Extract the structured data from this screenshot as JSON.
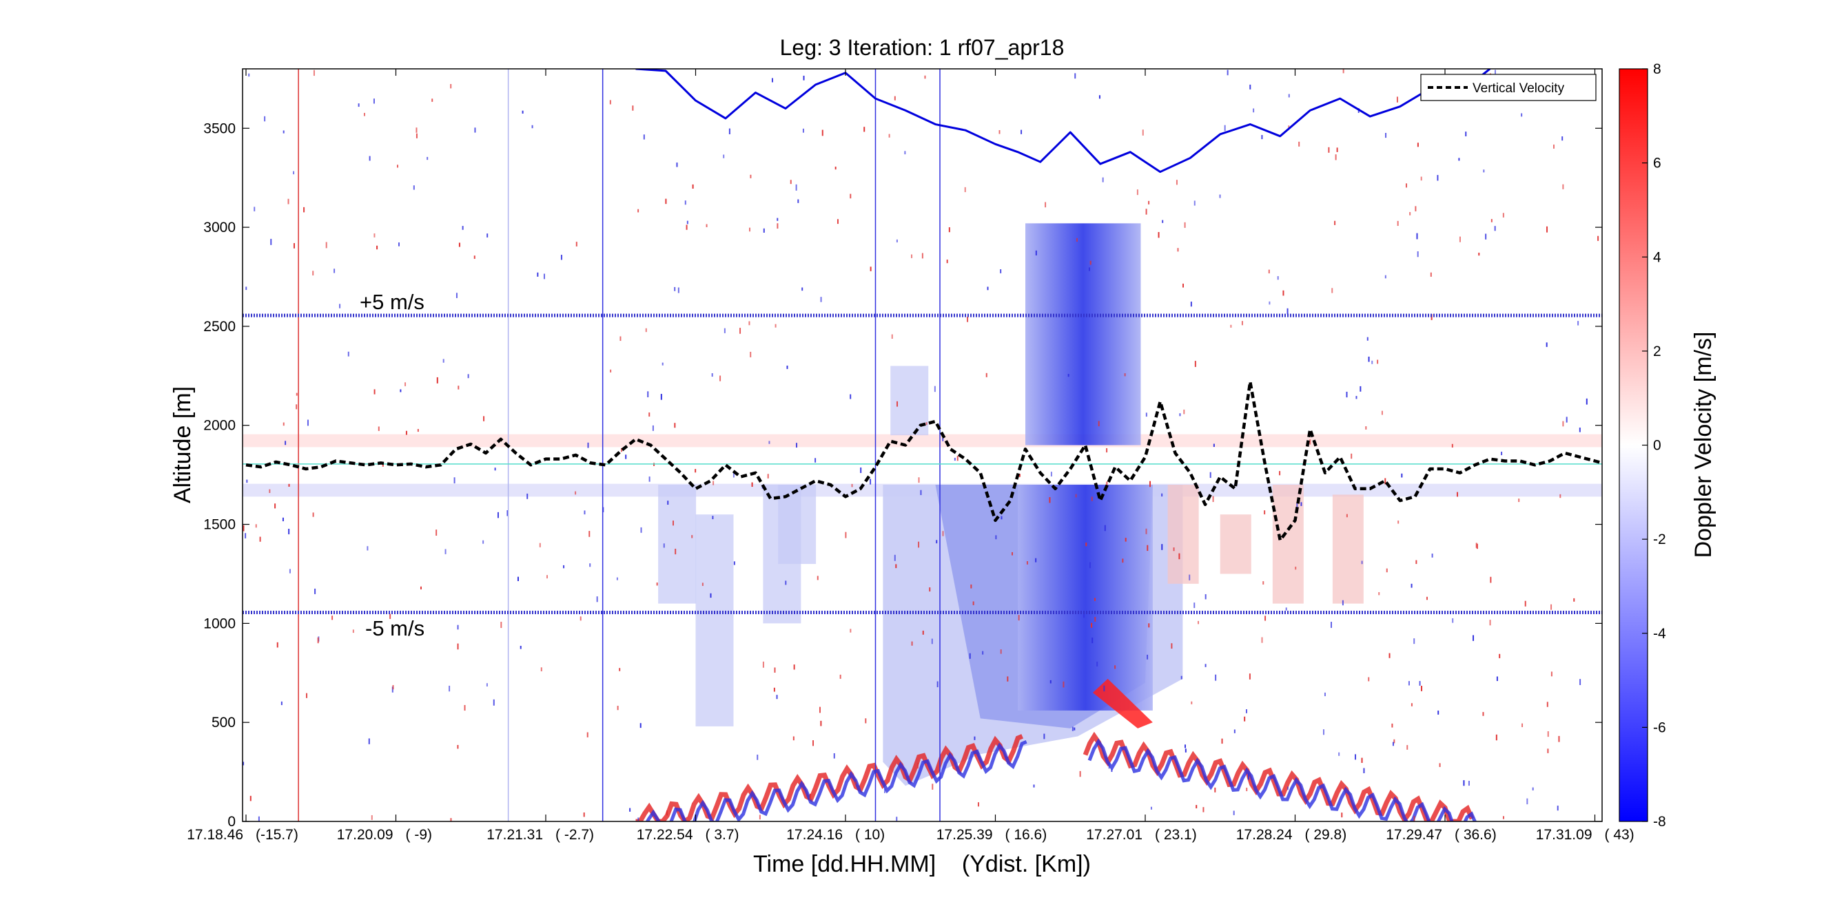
{
  "chart_data": {
    "type": "heatmap",
    "title": "Leg: 3  Iteration: 1  rf07_apr18",
    "xlabel": "Time [dd.HH.MM]    (Ydist. [Km])",
    "ylabel": "Altitude [m]",
    "ylim": [
      0,
      3800
    ],
    "yticks": [
      0,
      500,
      1000,
      1500,
      2000,
      2500,
      3000,
      3500
    ],
    "xticks": [
      {
        "time": "17.18.46",
        "ydist": "(-15.7)"
      },
      {
        "time": "17.20.09",
        "ydist": "(    -9)"
      },
      {
        "time": "17.21.31",
        "ydist": "( -2.7)"
      },
      {
        "time": "17.22.54",
        "ydist": "(   3.7)"
      },
      {
        "time": "17.24.16",
        "ydist": "(    10)"
      },
      {
        "time": "17.25.39",
        "ydist": "( 16.6)"
      },
      {
        "time": "17.27.01",
        "ydist": "( 23.1)"
      },
      {
        "time": "17.28.24",
        "ydist": "( 29.8)"
      },
      {
        "time": "17.29.47",
        "ydist": "( 36.6)"
      },
      {
        "time": "17.31.09",
        "ydist": "(    43)"
      }
    ],
    "colorbar": {
      "label": "Doppler Velocity [m/s]",
      "range": [
        -8,
        8
      ],
      "ticks": [
        -8,
        -6,
        -4,
        -2,
        0,
        2,
        4,
        6,
        8
      ],
      "low_color": "#0000ff",
      "mid_color": "#ffffff",
      "high_color": "#ff0000"
    },
    "legend": {
      "placement": "top-right",
      "entries": [
        "Vertical Velocity"
      ]
    },
    "annotations": [
      "+5 m/s",
      "-5 m/s"
    ],
    "reference_lines": [
      {
        "altitude": 2555,
        "label": "+5 m/s",
        "style": "dotted",
        "color": "#3333cc"
      },
      {
        "altitude": 1055,
        "label": "-5 m/s",
        "style": "dotted",
        "color": "#3333cc"
      },
      {
        "altitude": 1805,
        "label": "0 m/s",
        "style": "solid",
        "color": "#55ddcc"
      }
    ],
    "series": [
      {
        "name": "Vertical Velocity",
        "style": "dashed",
        "color": "#000000",
        "x_tick_units": [
          0.0,
          0.1,
          0.2,
          0.3,
          0.4,
          0.5,
          0.6,
          0.7,
          0.8,
          0.9,
          1.0,
          1.1,
          1.2,
          1.3,
          1.4,
          1.5,
          1.6,
          1.7,
          1.8,
          1.9,
          2.0,
          2.1,
          2.2,
          2.3,
          2.4,
          2.5,
          2.6,
          2.7,
          2.8,
          2.9,
          3.0,
          3.1,
          3.2,
          3.3,
          3.4,
          3.5,
          3.6,
          3.7,
          3.8,
          3.9,
          4.0,
          4.1,
          4.2,
          4.3,
          4.4,
          4.5,
          4.6,
          4.7,
          4.8,
          4.9,
          5.0,
          5.1,
          5.2,
          5.3,
          5.4,
          5.5,
          5.6,
          5.7,
          5.8,
          5.9,
          6.0,
          6.1,
          6.2,
          6.3,
          6.4,
          6.5,
          6.6,
          6.7,
          6.8,
          6.9,
          7.0,
          7.1,
          7.2,
          7.3,
          7.4,
          7.5,
          7.6,
          7.7,
          7.8,
          7.9,
          8.0,
          8.1,
          8.2,
          8.3,
          8.4,
          8.5,
          8.6,
          8.7,
          8.8,
          8.9,
          9.0,
          9.1,
          9.2,
          9.3,
          9.4,
          9.5,
          9.6,
          9.7,
          9.8,
          9.9,
          10.0
        ],
        "altitude": [
          1800,
          1790,
          1815,
          1800,
          1780,
          1790,
          1820,
          1810,
          1800,
          1810,
          1800,
          1805,
          1790,
          1800,
          1880,
          1905,
          1860,
          1930,
          1860,
          1800,
          1830,
          1830,
          1850,
          1810,
          1800,
          1870,
          1930,
          1900,
          1830,
          1760,
          1680,
          1720,
          1800,
          1740,
          1760,
          1630,
          1640,
          1680,
          1720,
          1700,
          1640,
          1680,
          1790,
          1920,
          1900,
          2000,
          2020,
          1880,
          1830,
          1760,
          1520,
          1620,
          1880,
          1760,
          1680,
          1780,
          1900,
          1620,
          1790,
          1720,
          1840,
          2120,
          1860,
          1760,
          1600,
          1740,
          1680,
          2220,
          1800,
          1420,
          1520,
          1980,
          1760,
          1840,
          1680,
          1680,
          1720,
          1620,
          1640,
          1780,
          1780,
          1760,
          1800,
          1830,
          1820,
          1820,
          1800,
          1820,
          1860,
          1840,
          1820,
          1800,
          1800,
          1780,
          1770,
          1800,
          1800,
          1810,
          1800,
          1810,
          1820
        ]
      },
      {
        "name": "",
        "style": "solid",
        "color": "#0000dd",
        "x_tick_units": [
          2.6,
          2.8,
          3.0,
          3.2,
          3.4,
          3.6,
          3.8,
          4.0,
          4.2,
          4.4,
          4.6,
          4.8,
          5.0,
          5.15,
          5.3,
          5.5,
          5.7,
          5.9,
          6.1,
          6.3,
          6.5,
          6.7,
          6.9,
          7.1,
          7.3,
          7.5,
          7.7,
          7.9,
          8.1,
          8.3
        ],
        "altitude": [
          3800,
          3790,
          3640,
          3550,
          3680,
          3600,
          3720,
          3780,
          3650,
          3590,
          3520,
          3490,
          3420,
          3380,
          3330,
          3480,
          3320,
          3380,
          3280,
          3350,
          3470,
          3520,
          3460,
          3590,
          3650,
          3560,
          3610,
          3700,
          3680,
          3800
        ]
      }
    ]
  }
}
